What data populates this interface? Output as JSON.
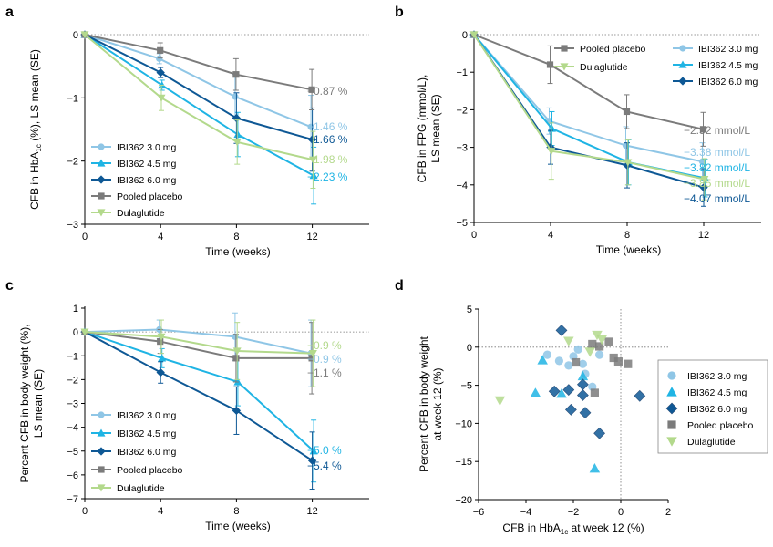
{
  "colors": {
    "c3": "#8fc6e6",
    "c45": "#1fb4e4",
    "c6": "#0e5895",
    "plac": "#7b7b7b",
    "dula": "#b3d98c",
    "axis": "#000000",
    "ref": "#777777"
  },
  "chart_data": [
    {
      "panel_label": "a",
      "type": "line",
      "xlabel": "Time  (weeks)",
      "ylabel_main": "CFB in HbA",
      "ylabel_sub": "1c",
      "ylabel_rest": " (%), LS mean (SE)",
      "x": [
        0,
        4,
        8,
        12
      ],
      "xlim": [
        0,
        15
      ],
      "ylim": [
        -3,
        0
      ],
      "xticks": [
        0,
        4,
        8,
        12
      ],
      "yticks": [
        0,
        -1,
        -2,
        -3
      ],
      "ytick_labels": [
        "0",
        "−1",
        "−2",
        "−3"
      ],
      "legend_position": "bottom-left",
      "series": [
        {
          "name": "IBI362 3.0 mg",
          "color_key": "c3",
          "marker": "circle",
          "values": [
            0,
            -0.38,
            -0.98,
            -1.46
          ],
          "errors": [
            0,
            0.08,
            0.35,
            0.5
          ],
          "end_label": "−1.46 %"
        },
        {
          "name": "IBI362 4.5 mg",
          "color_key": "c45",
          "marker": "triangle-up",
          "values": [
            0,
            -0.8,
            -1.58,
            -2.23
          ],
          "errors": [
            0,
            0.08,
            0.35,
            0.45
          ],
          "end_label": "−2.23 %"
        },
        {
          "name": "IBI362 6.0 mg",
          "color_key": "c6",
          "marker": "diamond",
          "values": [
            0,
            -0.6,
            -1.32,
            -1.66
          ],
          "errors": [
            0,
            0.08,
            0.4,
            0.5
          ],
          "end_label": "−1.66 %"
        },
        {
          "name": "Pooled placebo",
          "color_key": "plac",
          "marker": "square",
          "values": [
            0,
            -0.25,
            -0.63,
            -0.87
          ],
          "errors": [
            0,
            0.12,
            0.25,
            0.32
          ],
          "end_label": "−0.87 %"
        },
        {
          "name": "Dulaglutide",
          "color_key": "dula",
          "marker": "triangle-down",
          "values": [
            0,
            -1.0,
            -1.7,
            -1.98
          ],
          "errors": [
            0,
            0.2,
            0.35,
            0.45
          ],
          "end_label": "−1.98 %"
        }
      ],
      "end_label_order": [
        3,
        0,
        2,
        4,
        1
      ]
    },
    {
      "panel_label": "b",
      "type": "line",
      "xlabel": "Time  (weeks)",
      "ylabel_main": "CFB in FPG (mmol/L),",
      "ylabel_line2": "LS mean (SE)",
      "x": [
        0,
        4,
        8,
        12
      ],
      "xlim": [
        0,
        15
      ],
      "ylim": [
        -5,
        0
      ],
      "xticks": [
        0,
        4,
        8,
        12
      ],
      "yticks": [
        0,
        -1,
        -2,
        -3,
        -4,
        -5
      ],
      "ytick_labels": [
        "0",
        "−1",
        "−2",
        "−3",
        "−4",
        "−5"
      ],
      "legend_position": "top",
      "series": [
        {
          "name": "IBI362 3.0 mg",
          "color_key": "c3",
          "marker": "circle",
          "values": [
            0,
            -2.3,
            -2.95,
            -3.38
          ],
          "errors": [
            0,
            0.35,
            0.5,
            0.5
          ],
          "end_label": "−3.38 mmol/L"
        },
        {
          "name": "IBI362 4.5 mg",
          "color_key": "c45",
          "marker": "triangle-up",
          "values": [
            0,
            -2.5,
            -3.4,
            -3.82
          ],
          "errors": [
            0,
            0.45,
            0.6,
            0.5
          ],
          "end_label": "−3.82 mmol/L"
        },
        {
          "name": "IBI362 6.0 mg",
          "color_key": "c6",
          "marker": "diamond",
          "values": [
            0,
            -3.0,
            -3.48,
            -4.07
          ],
          "errors": [
            0,
            0.45,
            0.6,
            0.5
          ],
          "end_label": "−4.07 mmol/L"
        },
        {
          "name": "Pooled placebo",
          "color_key": "plac",
          "marker": "square",
          "values": [
            0,
            -0.8,
            -2.05,
            -2.52
          ],
          "errors": [
            0,
            0.5,
            0.45,
            0.45
          ],
          "end_label": "−2.52 mmol/L"
        },
        {
          "name": "Dulaglutide",
          "color_key": "dula",
          "marker": "triangle-down",
          "values": [
            0,
            -3.1,
            -3.4,
            -3.85
          ],
          "errors": [
            0,
            0.75,
            0.6,
            0.55
          ],
          "end_label": "−3.85 mmol/L"
        }
      ],
      "end_label_order": [
        3,
        0,
        1,
        4,
        2
      ]
    },
    {
      "panel_label": "c",
      "type": "line",
      "xlabel": "Time  (weeks)",
      "ylabel_main": "Percent CFB in body weight (%),",
      "ylabel_line2": "LS mean (SE)",
      "x": [
        0,
        4,
        8,
        12
      ],
      "xlim": [
        0,
        15
      ],
      "ylim": [
        -7,
        1
      ],
      "xticks": [
        0,
        4,
        8,
        12
      ],
      "yticks": [
        1,
        0,
        -1,
        -2,
        -3,
        -4,
        -5,
        -6,
        -7
      ],
      "ytick_labels": [
        "1",
        "0",
        "−1",
        "−2",
        "−3",
        "−4",
        "−5",
        "−6",
        "−7"
      ],
      "legend_position": "bottom-left",
      "series": [
        {
          "name": "IBI362 3.0 mg",
          "color_key": "c3",
          "marker": "circle",
          "values": [
            0,
            0.1,
            -0.2,
            -0.9
          ],
          "errors": [
            0,
            0.4,
            1.0,
            1.4
          ],
          "end_label": "−0.9 %"
        },
        {
          "name": "IBI362 4.5 mg",
          "color_key": "c45",
          "marker": "triangle-up",
          "values": [
            0,
            -1.1,
            -2.1,
            -5.0
          ],
          "errors": [
            0,
            0.4,
            1.0,
            1.3
          ],
          "end_label": "−5.0 %"
        },
        {
          "name": "IBI362 6.0 mg",
          "color_key": "c6",
          "marker": "diamond",
          "values": [
            0,
            -1.7,
            -3.3,
            -5.4
          ],
          "errors": [
            0,
            0.45,
            1.0,
            1.2
          ],
          "end_label": "−5.4 %"
        },
        {
          "name": "Pooled placebo",
          "color_key": "plac",
          "marker": "square",
          "values": [
            0,
            -0.4,
            -1.1,
            -1.1
          ],
          "errors": [
            0,
            0.5,
            1.0,
            1.5
          ],
          "end_label": "−1.1 %"
        },
        {
          "name": "Dulaglutide",
          "color_key": "dula",
          "marker": "triangle-down",
          "values": [
            0,
            -0.2,
            -0.8,
            -0.9
          ],
          "errors": [
            0,
            0.7,
            1.2,
            1.4
          ],
          "end_label": "−0.9 %"
        }
      ],
      "end_label_order": [
        4,
        0,
        3,
        1,
        2
      ]
    },
    {
      "panel_label": "d",
      "type": "scatter",
      "xlabel_main": "CFB in HbA",
      "xlabel_sub": "1c",
      "xlabel_rest": " at week 12 (%)",
      "ylabel_line1": "Percent CFB in body weight",
      "ylabel_line2": "at week 12 (%)",
      "xlim": [
        -6,
        2
      ],
      "ylim": [
        -20,
        5
      ],
      "xticks": [
        -6,
        -4,
        -2,
        0,
        2
      ],
      "xtick_labels": [
        "−6",
        "−4",
        "−2",
        "0",
        "2"
      ],
      "yticks": [
        5,
        0,
        -5,
        -10,
        -15,
        -20
      ],
      "ytick_labels": [
        "5",
        "0",
        "−5",
        "−10",
        "−15",
        "−20"
      ],
      "legend_position": "right",
      "series": [
        {
          "name": "IBI362 3.0 mg",
          "color_key": "c3",
          "marker": "circle",
          "points": [
            [
              -3.1,
              -1.0
            ],
            [
              -2.6,
              -1.8
            ],
            [
              -2.2,
              -2.4
            ],
            [
              -1.8,
              -0.3
            ],
            [
              -1.6,
              -2.2
            ],
            [
              -1.5,
              -3.5
            ],
            [
              -1.2,
              -5.2
            ],
            [
              -0.9,
              -1.0
            ],
            [
              -2.0,
              -1.2
            ]
          ]
        },
        {
          "name": "IBI362 4.5 mg",
          "color_key": "c45",
          "marker": "triangle-up",
          "points": [
            [
              -3.3,
              -1.7
            ],
            [
              -3.6,
              -6.0
            ],
            [
              -2.5,
              -6.1
            ],
            [
              -1.6,
              -3.8
            ],
            [
              -1.1,
              -15.9
            ]
          ]
        },
        {
          "name": "IBI362 6.0 mg",
          "color_key": "c6",
          "marker": "diamond",
          "points": [
            [
              -2.5,
              2.2
            ],
            [
              -2.8,
              -5.8
            ],
            [
              -2.2,
              -5.6
            ],
            [
              -1.6,
              -4.9
            ],
            [
              -2.1,
              -8.2
            ],
            [
              -1.6,
              -6.3
            ],
            [
              -1.5,
              -8.6
            ],
            [
              -0.9,
              -11.3
            ],
            [
              0.8,
              -6.4
            ]
          ]
        },
        {
          "name": "Pooled placebo",
          "color_key": "plac",
          "marker": "square",
          "points": [
            [
              -1.2,
              0.4
            ],
            [
              -0.9,
              0.1
            ],
            [
              -0.5,
              0.7
            ],
            [
              -0.3,
              -1.4
            ],
            [
              -1.1,
              -6.0
            ],
            [
              -0.1,
              -1.9
            ],
            [
              -1.9,
              -2.0
            ],
            [
              0.3,
              -2.2
            ]
          ]
        },
        {
          "name": "Dulaglutide",
          "color_key": "dula",
          "marker": "triangle-down",
          "points": [
            [
              -5.1,
              -7.0
            ],
            [
              -2.2,
              0.8
            ],
            [
              -1.0,
              1.6
            ],
            [
              -0.8,
              1.0
            ],
            [
              -1.3,
              -0.6
            ]
          ]
        }
      ]
    }
  ]
}
